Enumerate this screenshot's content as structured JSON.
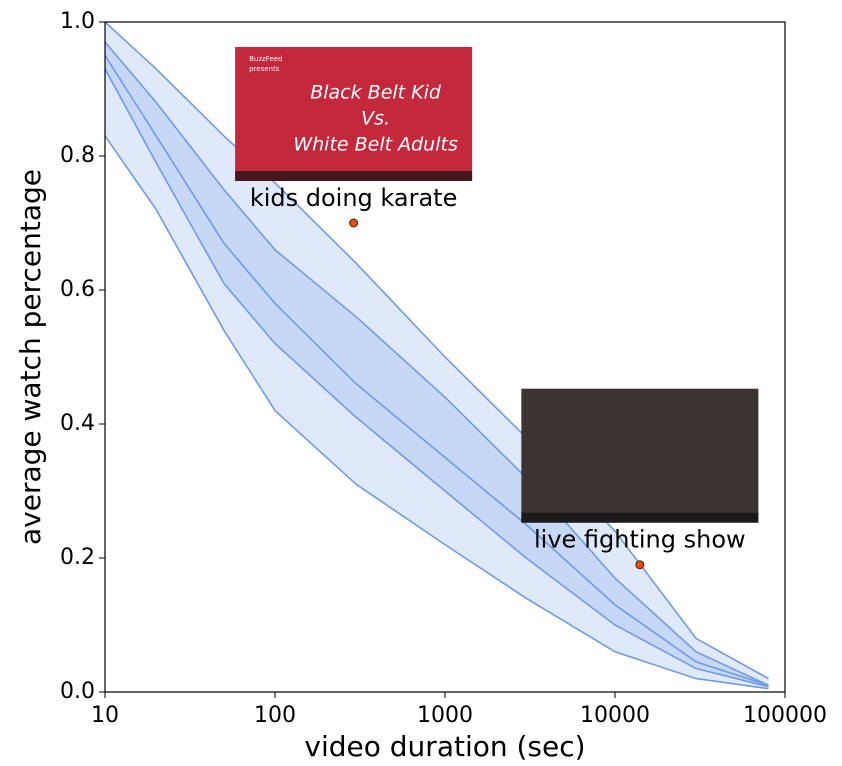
{
  "chart_data": {
    "type": "percentile-lines",
    "xlabel": "video duration (sec)",
    "ylabel": "average watch percentage",
    "xscale": "log",
    "xlim": [
      10,
      100000
    ],
    "xticks": [
      10,
      100,
      1000,
      10000,
      100000
    ],
    "ylim": [
      0,
      1
    ],
    "yticks": [
      {
        "value": 0,
        "label": "0.0"
      },
      0.2,
      0.4,
      0.6,
      0.8,
      {
        "value": 1,
        "label": "1.0"
      }
    ],
    "x": [
      10,
      20,
      50,
      100,
      300,
      1000,
      3000,
      10000,
      30000,
      80000
    ],
    "series": [
      {
        "color": "#6f9be6",
        "values": [
          1.0,
          0.93,
          0.83,
          0.76,
          0.64,
          0.5,
          0.38,
          0.24,
          0.08,
          0.02
        ]
      },
      {
        "color": "#6f9be6",
        "values": [
          0.97,
          0.88,
          0.75,
          0.66,
          0.56,
          0.44,
          0.32,
          0.17,
          0.06,
          0.01
        ]
      },
      {
        "color": "#6f9be6",
        "values": [
          0.95,
          0.83,
          0.67,
          0.58,
          0.46,
          0.35,
          0.25,
          0.13,
          0.045,
          0.01
        ]
      },
      {
        "color": "#6f9be6",
        "values": [
          0.93,
          0.79,
          0.61,
          0.52,
          0.41,
          0.3,
          0.2,
          0.1,
          0.035,
          0.008
        ]
      },
      {
        "color": "#6f9be6",
        "values": [
          0.83,
          0.72,
          0.54,
          0.42,
          0.31,
          0.22,
          0.14,
          0.06,
          0.02,
          0.005
        ]
      }
    ],
    "annotations": [
      {
        "label": "kids doing karate",
        "x": 290,
        "y": 0.7,
        "color": "#e0501a",
        "thumbnail_color": "#c4283c",
        "thumbnail_text": [
          "BuzzFeed",
          "presents",
          "Black Belt Kid",
          "Vs.",
          "White Belt Adults"
        ]
      },
      {
        "label": "live fighting show",
        "x": 14000,
        "y": 0.19,
        "color": "#e0501a",
        "thumbnail_color": "#3b3431",
        "thumbnail_text": []
      }
    ]
  }
}
